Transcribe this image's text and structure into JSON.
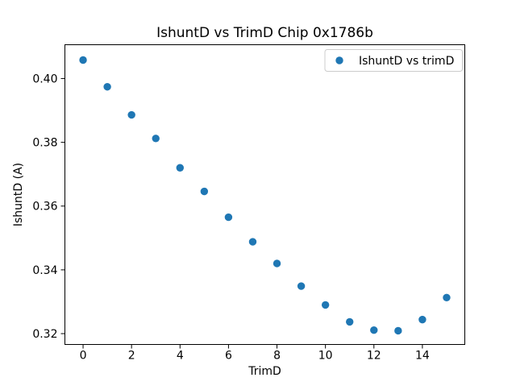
{
  "chart_data": {
    "type": "scatter",
    "title": "IshuntD vs TrimD Chip 0x1786b",
    "xlabel": "TrimD",
    "ylabel": "IshuntD (A)",
    "legend": {
      "label": "IshuntD vs trimD",
      "position": "upper right"
    },
    "x": [
      0,
      1,
      2,
      3,
      4,
      5,
      6,
      7,
      8,
      9,
      10,
      11,
      12,
      13,
      14,
      15
    ],
    "y": [
      0.4058,
      0.3974,
      0.3886,
      0.3812,
      0.372,
      0.3646,
      0.3565,
      0.3488,
      0.342,
      0.3349,
      0.329,
      0.3237,
      0.3211,
      0.3209,
      0.3244,
      0.3313
    ],
    "xlim": [
      -0.75,
      15.75
    ],
    "ylim": [
      0.3166,
      0.4106
    ],
    "xticks": [
      0,
      2,
      4,
      6,
      8,
      10,
      12,
      14
    ],
    "xtick_labels": [
      "0",
      "2",
      "4",
      "6",
      "8",
      "10",
      "12",
      "14"
    ],
    "yticks": [
      0.32,
      0.34,
      0.36,
      0.38,
      0.4
    ],
    "ytick_labels": [
      "0.32",
      "0.34",
      "0.36",
      "0.38",
      "0.40"
    ],
    "marker_color": "#1f77b4",
    "frame_color": "#000000",
    "grid": false
  }
}
